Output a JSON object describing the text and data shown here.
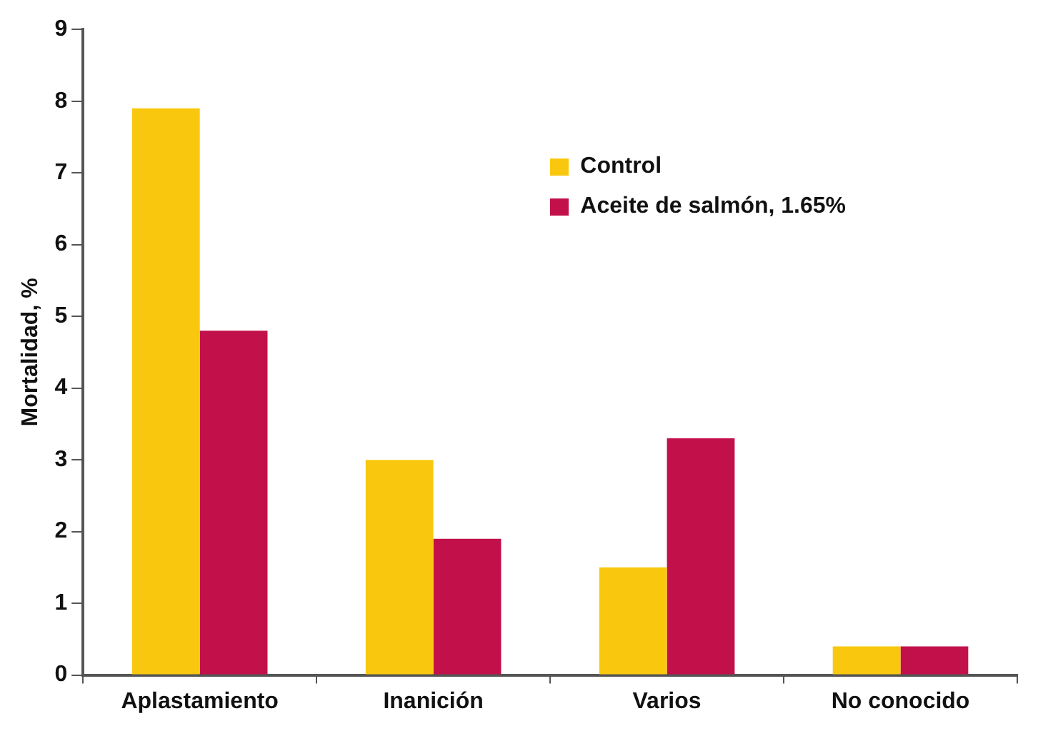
{
  "chart_data": {
    "type": "bar",
    "ylabel": "Mortalidad, %",
    "categories": [
      "Aplastamiento",
      "Inanición",
      "Varios",
      "No conocido"
    ],
    "series": [
      {
        "name": "Control",
        "color": "#f9c80e",
        "values": [
          7.9,
          3.0,
          1.5,
          0.4
        ]
      },
      {
        "name": "Aceite de salmón, 1.65%",
        "color": "#c2104a",
        "values": [
          4.8,
          1.9,
          3.3,
          0.4
        ]
      }
    ],
    "ylim": [
      0,
      9
    ],
    "yticks": [
      0,
      1,
      2,
      3,
      4,
      5,
      6,
      7,
      8,
      9
    ],
    "grid": false,
    "legend": "top right"
  }
}
